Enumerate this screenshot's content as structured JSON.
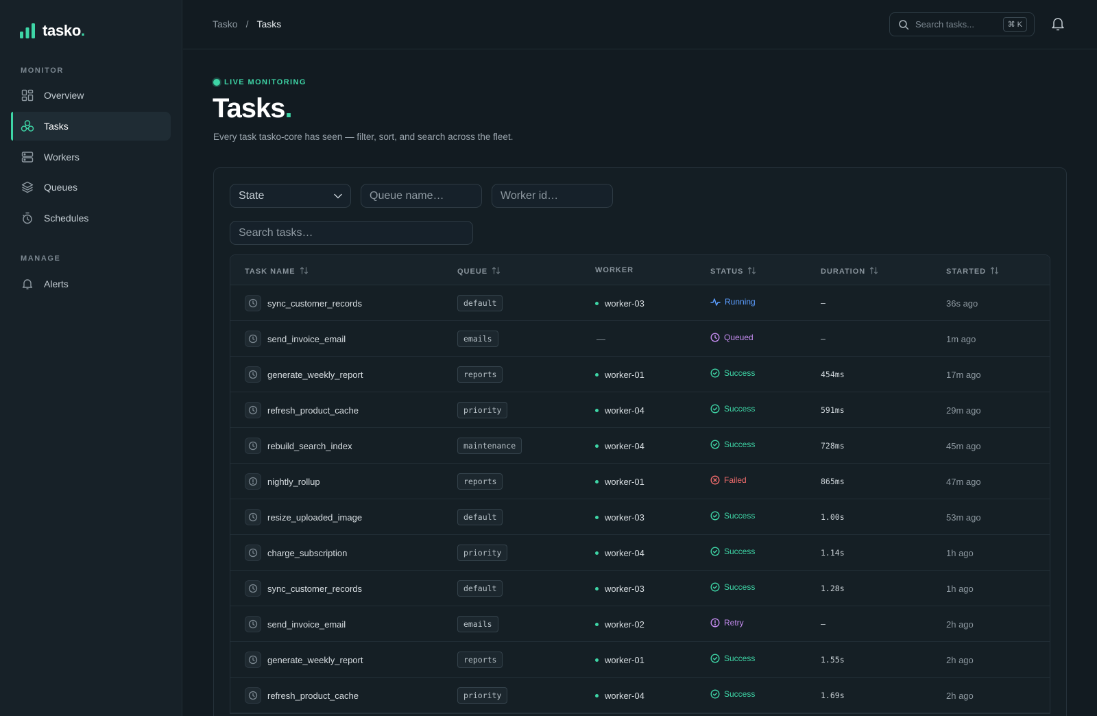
{
  "brand": {
    "name": "tasko",
    "dot": ".",
    "accent": "#3ed5a6"
  },
  "sidebar": {
    "sections": [
      {
        "label": "MONITOR",
        "items": [
          {
            "label": "Overview",
            "icon": "grid-icon"
          },
          {
            "label": "Tasks",
            "icon": "tasks-icon",
            "active": true
          },
          {
            "label": "Workers",
            "icon": "server-icon"
          },
          {
            "label": "Queues",
            "icon": "layers-icon"
          },
          {
            "label": "Schedules",
            "icon": "timer-icon"
          }
        ]
      },
      {
        "label": "MANAGE",
        "items": [
          {
            "label": "Alerts",
            "icon": "bell-icon"
          }
        ]
      }
    ]
  },
  "topbar": {
    "breadcrumb": [
      "Tasko",
      "/",
      "Tasks"
    ],
    "search_placeholder": "Search tasks...",
    "shortcut": "⌘ K"
  },
  "header": {
    "eyebrow": "LIVE MONITORING",
    "title": "Tasks",
    "title_dot": ".",
    "subtitle": "Every task tasko-core has seen — filter, sort, and search across the fleet."
  },
  "filters": {
    "state_label": "State",
    "queue_placeholder": "Queue name…",
    "worker_placeholder": "Worker id…",
    "search_placeholder": "Search tasks…"
  },
  "table": {
    "columns": [
      "TASK NAME",
      "QUEUE",
      "WORKER",
      "STATUS",
      "DURATION",
      "STARTED"
    ],
    "status_colors": {
      "Running": "#5b9dff",
      "Queued": "#c58cf0",
      "Success": "#3ed5a6",
      "Failed": "#f26d6d",
      "Retry": "#c58cf0"
    },
    "rows": [
      {
        "name": "sync_customer_records",
        "queue": "default",
        "worker": "worker-03",
        "status": "Running",
        "duration": "–",
        "started": "36s ago"
      },
      {
        "name": "send_invoice_email",
        "queue": "emails",
        "worker": "—",
        "status": "Queued",
        "duration": "–",
        "started": "1m ago"
      },
      {
        "name": "generate_weekly_report",
        "queue": "reports",
        "worker": "worker-01",
        "status": "Success",
        "duration": "454ms",
        "started": "17m ago"
      },
      {
        "name": "refresh_product_cache",
        "queue": "priority",
        "worker": "worker-04",
        "status": "Success",
        "duration": "591ms",
        "started": "29m ago"
      },
      {
        "name": "rebuild_search_index",
        "queue": "maintenance",
        "worker": "worker-04",
        "status": "Success",
        "duration": "728ms",
        "started": "45m ago"
      },
      {
        "name": "nightly_rollup",
        "queue": "reports",
        "worker": "worker-01",
        "status": "Failed",
        "duration": "865ms",
        "started": "47m ago"
      },
      {
        "name": "resize_uploaded_image",
        "queue": "default",
        "worker": "worker-03",
        "status": "Success",
        "duration": "1.00s",
        "started": "53m ago"
      },
      {
        "name": "charge_subscription",
        "queue": "priority",
        "worker": "worker-04",
        "status": "Success",
        "duration": "1.14s",
        "started": "1h ago"
      },
      {
        "name": "sync_customer_records",
        "queue": "default",
        "worker": "worker-03",
        "status": "Success",
        "duration": "1.28s",
        "started": "1h ago"
      },
      {
        "name": "send_invoice_email",
        "queue": "emails",
        "worker": "worker-02",
        "status": "Retry",
        "duration": "–",
        "started": "2h ago"
      },
      {
        "name": "generate_weekly_report",
        "queue": "reports",
        "worker": "worker-01",
        "status": "Success",
        "duration": "1.55s",
        "started": "2h ago"
      },
      {
        "name": "refresh_product_cache",
        "queue": "priority",
        "worker": "worker-04",
        "status": "Success",
        "duration": "1.69s",
        "started": "2h ago"
      }
    ]
  }
}
